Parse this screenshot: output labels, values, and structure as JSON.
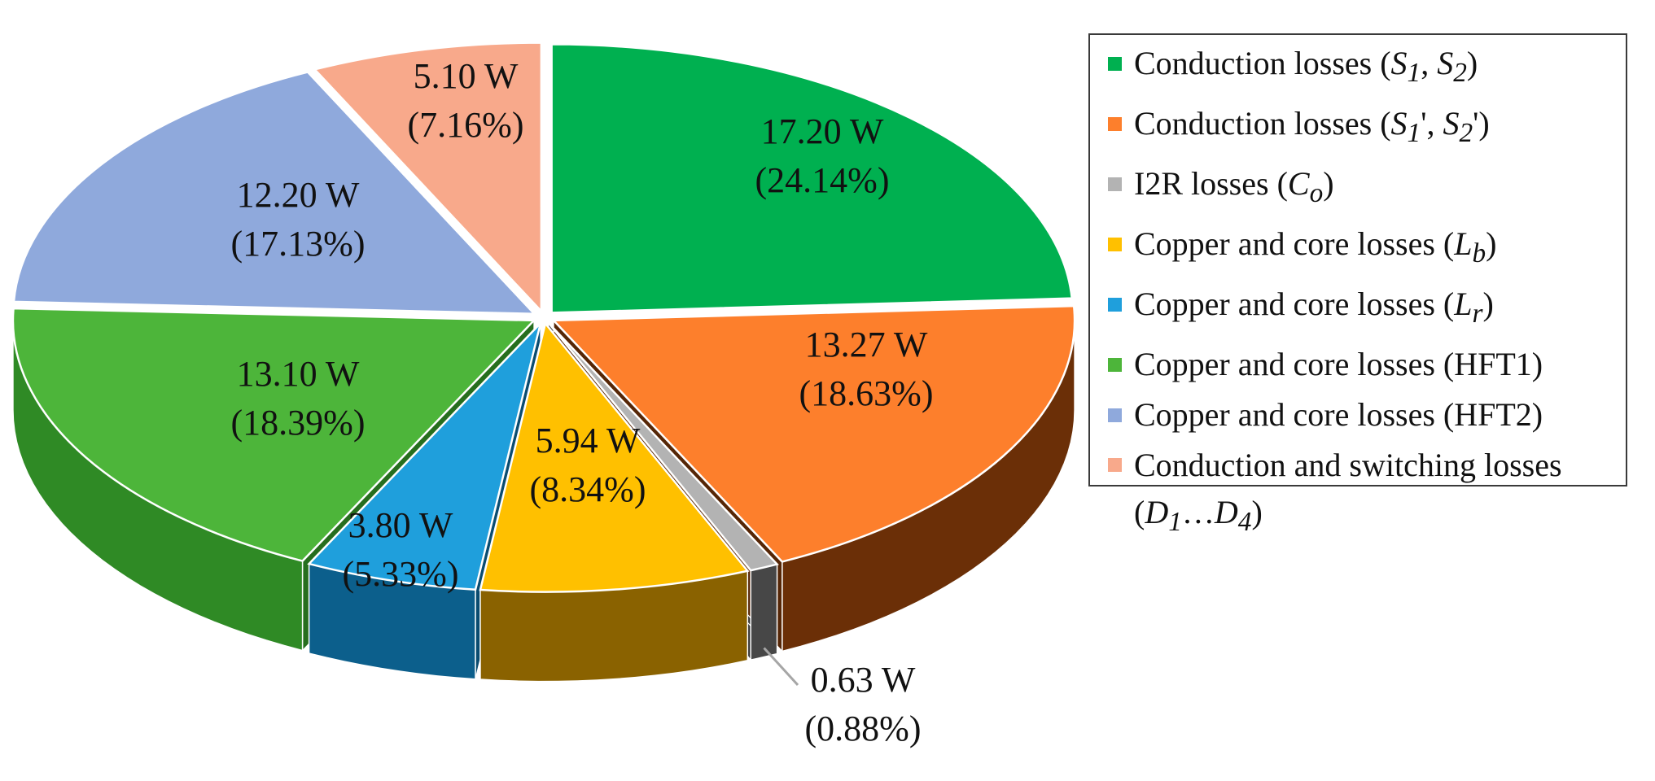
{
  "chart_data": {
    "type": "pie",
    "subtype": "3d-exploded-pie",
    "slices": [
      {
        "name": "Conduction losses (S1, S2)",
        "value": 17.2,
        "value_label": "17.20 W",
        "percent_label": "(24.14%)",
        "color": "#00b050",
        "side_color": "#007a37"
      },
      {
        "name": "Conduction losses (S1', S2')",
        "value": 13.27,
        "value_label": "13.27 W",
        "percent_label": "(18.63%)",
        "color": "#fd7f2c",
        "side_color": "#6b2f07"
      },
      {
        "name": "I2R losses (Co)",
        "value": 0.63,
        "value_label": "0.63 W",
        "percent_label": "(0.88%)",
        "color": "#b3b3b3",
        "side_color": "#474747"
      },
      {
        "name": "Copper and core losses (Lb)",
        "value": 5.94,
        "value_label": "5.94 W",
        "percent_label": "(8.34%)",
        "color": "#ffc000",
        "side_color": "#8a6200"
      },
      {
        "name": "Copper and core losses (Lr)",
        "value": 3.8,
        "value_label": "3.80 W",
        "percent_label": "(5.33%)",
        "color": "#1f9fdc",
        "side_color": "#0c5f8c"
      },
      {
        "name": "Copper and core losses (HFT1)",
        "value": 13.1,
        "value_label": "13.10 W",
        "percent_label": "(18.39%)",
        "color": "#4db53a",
        "side_color": "#2f8a25"
      },
      {
        "name": "Copper and core losses (HFT2)",
        "value": 12.2,
        "value_label": "12.20 W",
        "percent_label": "(17.13%)",
        "color": "#8fa9dc",
        "side_color": "#5a74a8"
      },
      {
        "name": "Conduction and switching losses (D1...D4)",
        "value": 5.1,
        "value_label": "5.10 W",
        "percent_label": "(7.16%)",
        "color": "#f8a98b",
        "side_color": "#b4725a"
      }
    ]
  },
  "legend": {
    "items": [
      {
        "pre": "Conduction losses (",
        "sym": "S",
        "sub": "1",
        "mid": ", ",
        "sym2": "S",
        "sub2": "2",
        "post": ")"
      },
      {
        "pre": "Conduction losses (",
        "sym": "S",
        "sub": "1",
        "prime": "'",
        "mid": ", ",
        "sym2": "S",
        "sub2": "2",
        "prime2": "'",
        "post": ")"
      },
      {
        "pre": "I2R losses (",
        "sym": "C",
        "sub": "o",
        "post": ")"
      },
      {
        "pre": "Copper and core losses (",
        "sym": "L",
        "sub": "b",
        "post": ")"
      },
      {
        "pre": "Copper and core losses (",
        "sym": "L",
        "sub": "r",
        "post": ")"
      },
      {
        "pre": "Copper and core losses (HFT1)"
      },
      {
        "pre": "Copper and core losses (HFT2)"
      },
      {
        "pre": "Conduction and switching losses (",
        "sym": "D",
        "sub": "1",
        "mid": "…",
        "sym2": "D",
        "sub2": "4",
        "post": ")"
      }
    ]
  }
}
